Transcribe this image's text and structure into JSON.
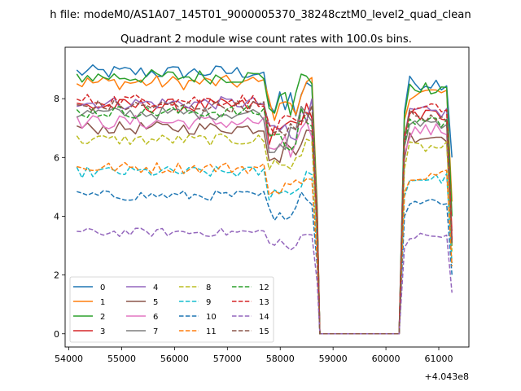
{
  "chart_data": {
    "type": "line",
    "suptitle": "h file: modeM0/AS1A07_145T01_9000005370_38248cztM0_level2_quad_clean",
    "title": "Quadrant 2 module wise count rates with 100.0s bins.",
    "xlabel": "",
    "ylabel": "",
    "x_offset_label": "+4.043e8",
    "xlim": [
      53930,
      61570
    ],
    "ylim": [
      -0.45,
      9.75
    ],
    "xticks": [
      54000,
      55000,
      56000,
      57000,
      58000,
      59000,
      60000,
      61000
    ],
    "xtick_labels": [
      "54000",
      "55000",
      "56000",
      "57000",
      "58000",
      "59000",
      "60000",
      "61000"
    ],
    "yticks": [
      0,
      2,
      4,
      6,
      8
    ],
    "ytick_labels": [
      "0",
      "2",
      "4",
      "6",
      "8"
    ],
    "grid": false,
    "legend_position": "lower-left",
    "legend_columns": 4,
    "segments": [
      {
        "x_start": 54150,
        "x_end": 58700,
        "n": 46
      },
      {
        "x_start": 58750,
        "x_end": 60250,
        "n": 16
      },
      {
        "x_start": 60350,
        "x_end": 61250,
        "n": 10
      }
    ],
    "series": [
      {
        "name": "0",
        "color": "#1f77b4",
        "dashed": false,
        "level": 8.9,
        "amp": 0.25,
        "end": 6.0
      },
      {
        "name": "1",
        "color": "#ff7f0e",
        "dashed": false,
        "level": 8.55,
        "amp": 0.25,
        "end": 4.5
      },
      {
        "name": "2",
        "color": "#2ca02c",
        "dashed": false,
        "level": 8.75,
        "amp": 0.25,
        "end": 4.0
      },
      {
        "name": "3",
        "color": "#d62728",
        "dashed": false,
        "level": 7.75,
        "amp": 0.25,
        "end": 3.5
      },
      {
        "name": "4",
        "color": "#9467bd",
        "dashed": false,
        "level": 7.85,
        "amp": 0.22,
        "end": 3.0
      },
      {
        "name": "5",
        "color": "#8c564b",
        "dashed": false,
        "level": 7.0,
        "amp": 0.22,
        "end": 3.2
      },
      {
        "name": "6",
        "color": "#e377c2",
        "dashed": false,
        "level": 7.2,
        "amp": 0.25,
        "end": 3.3
      },
      {
        "name": "7",
        "color": "#7f7f7f",
        "dashed": false,
        "level": 7.5,
        "amp": 0.22,
        "end": 3.0
      },
      {
        "name": "8",
        "color": "#bcbd22",
        "dashed": true,
        "level": 6.6,
        "amp": 0.2,
        "end": 2.8
      },
      {
        "name": "9",
        "color": "#17becf",
        "dashed": true,
        "level": 5.5,
        "amp": 0.2,
        "end": 2.4
      },
      {
        "name": "10",
        "color": "#1f77b4",
        "dashed": true,
        "level": 4.7,
        "amp": 0.18,
        "end": 2.0
      },
      {
        "name": "11",
        "color": "#ff7f0e",
        "dashed": true,
        "level": 5.65,
        "amp": 0.2,
        "end": 2.3
      },
      {
        "name": "12",
        "color": "#2ca02c",
        "dashed": true,
        "level": 7.55,
        "amp": 0.22,
        "end": 3.0
      },
      {
        "name": "13",
        "color": "#d62728",
        "dashed": true,
        "level": 7.95,
        "amp": 0.22,
        "end": 3.2
      },
      {
        "name": "14",
        "color": "#9467bd",
        "dashed": true,
        "level": 3.45,
        "amp": 0.15,
        "end": 1.4
      },
      {
        "name": "15",
        "color": "#8c564b",
        "dashed": true,
        "level": 7.75,
        "amp": 0.22,
        "end": 3.1
      }
    ]
  }
}
